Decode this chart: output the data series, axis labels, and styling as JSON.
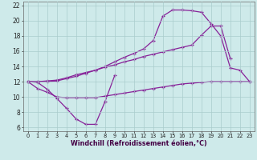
{
  "xlabel": "Windchill (Refroidissement éolien,°C)",
  "bg_color": "#ceeaea",
  "grid_color": "#aacccc",
  "line_color": "#882299",
  "xlim": [
    -0.5,
    23.5
  ],
  "ylim": [
    5.5,
    22.5
  ],
  "yticks": [
    6,
    8,
    10,
    12,
    14,
    16,
    18,
    20,
    22
  ],
  "xticks": [
    0,
    1,
    2,
    3,
    4,
    5,
    6,
    7,
    8,
    9,
    10,
    11,
    12,
    13,
    14,
    15,
    16,
    17,
    18,
    19,
    20,
    21,
    22,
    23
  ],
  "line1_x": [
    0,
    1,
    2,
    3,
    4,
    5,
    6,
    7,
    8,
    9
  ],
  "line1_y": [
    12.0,
    11.9,
    11.0,
    9.8,
    8.5,
    7.1,
    6.4,
    6.4,
    9.4,
    12.8
  ],
  "line2_x": [
    0,
    1,
    2,
    3,
    4,
    5,
    6,
    7,
    8,
    9,
    10,
    11,
    12,
    13,
    14,
    15,
    16,
    17,
    18,
    19,
    20,
    21,
    22,
    23
  ],
  "line2_y": [
    12.0,
    11.1,
    10.6,
    10.0,
    9.9,
    9.9,
    9.9,
    9.9,
    10.1,
    10.3,
    10.5,
    10.7,
    10.9,
    11.1,
    11.3,
    11.5,
    11.7,
    11.8,
    11.9,
    12.0,
    12.0,
    12.0,
    12.0,
    12.0
  ],
  "line3_x": [
    0,
    1,
    2,
    3,
    4,
    5,
    6,
    7,
    8,
    9,
    10,
    11,
    12,
    13,
    14,
    15,
    16,
    17,
    18,
    19,
    20,
    21
  ],
  "line3_y": [
    12.0,
    12.0,
    12.1,
    12.2,
    12.5,
    12.9,
    13.2,
    13.5,
    13.9,
    14.2,
    14.6,
    14.9,
    15.3,
    15.6,
    15.9,
    16.2,
    16.5,
    16.8,
    18.1,
    19.3,
    19.3,
    15.0
  ],
  "line4_x": [
    0,
    1,
    2,
    3,
    4,
    5,
    6,
    7,
    8,
    9,
    10,
    11,
    12,
    13,
    14,
    15,
    16,
    17,
    18,
    19,
    20,
    21,
    22,
    23
  ],
  "line4_y": [
    12.0,
    12.0,
    12.0,
    12.1,
    12.4,
    12.7,
    13.1,
    13.5,
    14.0,
    14.6,
    15.2,
    15.7,
    16.3,
    17.4,
    20.6,
    21.4,
    21.4,
    21.3,
    21.1,
    19.6,
    18.0,
    13.8,
    13.5,
    12.0
  ]
}
